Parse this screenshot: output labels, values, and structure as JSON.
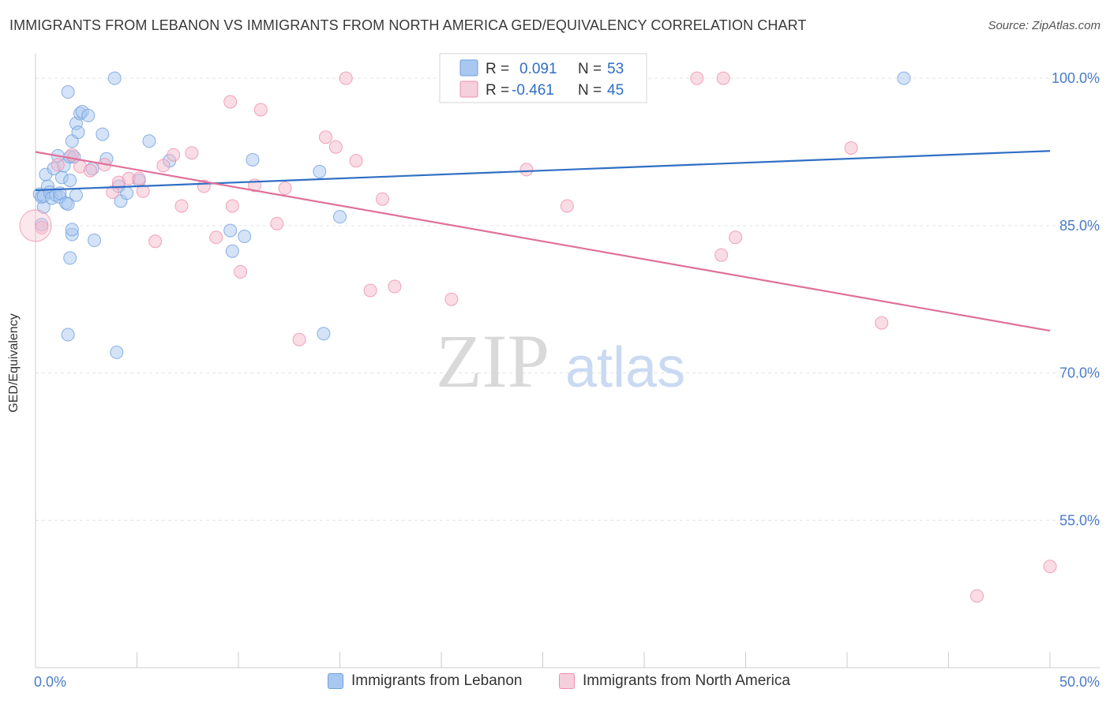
{
  "header": {
    "title": "IMMIGRANTS FROM LEBANON VS IMMIGRANTS FROM NORTH AMERICA GED/EQUIVALENCY CORRELATION CHART",
    "source": "Source: ZipAtlas.com"
  },
  "watermark": {
    "zip": "ZIP",
    "atlas": "atlas"
  },
  "colors": {
    "blue_fill": "#a9c8f0",
    "blue_stroke": "#6f9fde",
    "blue_line": "#2f6fc4",
    "pink_fill": "#f6b9cc",
    "pink_stroke": "#ec8fae",
    "pink_line": "#e0709a",
    "tick_text": "#4a7cc9",
    "grid": "#e3e3e3"
  },
  "chart_data": {
    "type": "scatter",
    "xlabel": "",
    "ylabel": "GED/Equivalency",
    "xlim": [
      0,
      50
    ],
    "ylim": [
      40,
      102.5
    ],
    "x_tick_labels": [
      {
        "value": 0,
        "label": "0.0%"
      },
      {
        "value": 50,
        "label": "50.0%"
      }
    ],
    "y_tick_labels": [
      {
        "value": 100,
        "label": "100.0%"
      },
      {
        "value": 85,
        "label": "85.0%"
      },
      {
        "value": 70,
        "label": "70.0%"
      },
      {
        "value": 55,
        "label": "55.0%"
      }
    ],
    "grid": "horizontal dashed",
    "legend": {
      "placement": "top-center",
      "entries": [
        {
          "r_label": "R =",
          "r_value": "0.091",
          "n_label": "N =",
          "n_value": "53"
        },
        {
          "r_label": "R =",
          "r_value": "-0.461",
          "n_label": "N =",
          "n_value": "45"
        }
      ]
    },
    "series": [
      {
        "name": "Immigrants from Lebanon",
        "color": "blue",
        "trend": {
          "x": [
            0,
            50
          ],
          "y": [
            88.6,
            92.6
          ]
        },
        "points": [
          [
            0.2,
            88.2
          ],
          [
            0.3,
            87.9
          ],
          [
            0.3,
            85.1
          ],
          [
            0.4,
            86.9
          ],
          [
            0.4,
            88.0
          ],
          [
            0.5,
            90.2
          ],
          [
            0.6,
            89.0
          ],
          [
            0.7,
            88.4
          ],
          [
            0.8,
            87.8
          ],
          [
            0.9,
            90.8
          ],
          [
            1.0,
            88.1
          ],
          [
            1.1,
            92.1
          ],
          [
            1.2,
            87.9
          ],
          [
            1.2,
            88.3
          ],
          [
            1.3,
            89.9
          ],
          [
            1.4,
            91.1
          ],
          [
            1.5,
            87.3
          ],
          [
            1.6,
            87.2
          ],
          [
            1.7,
            89.6
          ],
          [
            1.7,
            92.0
          ],
          [
            1.8,
            93.6
          ],
          [
            1.6,
            73.9
          ],
          [
            1.6,
            98.6
          ],
          [
            1.8,
            84.1
          ],
          [
            1.7,
            81.7
          ],
          [
            1.8,
            84.6
          ],
          [
            1.9,
            92.0
          ],
          [
            2.0,
            95.4
          ],
          [
            2.0,
            88.1
          ],
          [
            2.1,
            94.5
          ],
          [
            2.2,
            96.4
          ],
          [
            2.3,
            96.6
          ],
          [
            2.6,
            96.2
          ],
          [
            2.8,
            90.8
          ],
          [
            2.9,
            83.5
          ],
          [
            3.3,
            94.3
          ],
          [
            3.5,
            91.8
          ],
          [
            3.9,
            100.0
          ],
          [
            4.1,
            89.0
          ],
          [
            4.2,
            87.5
          ],
          [
            4.0,
            72.1
          ],
          [
            4.5,
            88.3
          ],
          [
            5.1,
            89.6
          ],
          [
            5.6,
            93.6
          ],
          [
            6.6,
            91.6
          ],
          [
            9.6,
            84.5
          ],
          [
            9.7,
            82.4
          ],
          [
            10.3,
            83.9
          ],
          [
            10.7,
            91.7
          ],
          [
            14.0,
            90.5
          ],
          [
            14.2,
            74.0
          ],
          [
            15.0,
            85.9
          ],
          [
            42.8,
            100.0
          ]
        ]
      },
      {
        "name": "Immigrants from North America",
        "color": "pink",
        "trend": {
          "x": [
            0,
            50
          ],
          "y": [
            92.5,
            74.3
          ]
        },
        "points": [
          [
            0.3,
            84.8
          ],
          [
            1.1,
            91.2
          ],
          [
            1.8,
            92.2
          ],
          [
            2.2,
            91.0
          ],
          [
            2.7,
            90.6
          ],
          [
            3.4,
            91.2
          ],
          [
            3.8,
            88.4
          ],
          [
            4.1,
            89.4
          ],
          [
            4.6,
            89.8
          ],
          [
            5.1,
            89.8
          ],
          [
            5.3,
            88.5
          ],
          [
            5.9,
            83.4
          ],
          [
            6.3,
            91.1
          ],
          [
            6.8,
            92.2
          ],
          [
            7.2,
            87.0
          ],
          [
            7.7,
            92.4
          ],
          [
            8.3,
            89.0
          ],
          [
            8.9,
            83.8
          ],
          [
            9.6,
            97.6
          ],
          [
            9.7,
            87.0
          ],
          [
            10.1,
            80.3
          ],
          [
            10.8,
            89.1
          ],
          [
            11.1,
            96.8
          ],
          [
            11.9,
            85.2
          ],
          [
            12.3,
            88.8
          ],
          [
            13.0,
            73.4
          ],
          [
            14.3,
            94.0
          ],
          [
            14.8,
            93.0
          ],
          [
            15.3,
            100.0
          ],
          [
            15.8,
            91.6
          ],
          [
            16.5,
            78.4
          ],
          [
            17.1,
            87.7
          ],
          [
            17.7,
            78.8
          ],
          [
            20.5,
            77.5
          ],
          [
            24.2,
            90.7
          ],
          [
            26.2,
            87.0
          ],
          [
            32.6,
            100.0
          ],
          [
            33.9,
            100.0
          ],
          [
            33.8,
            82.0
          ],
          [
            34.5,
            83.8
          ],
          [
            40.2,
            92.9
          ],
          [
            41.7,
            75.1
          ],
          [
            46.4,
            47.3
          ],
          [
            50.0,
            50.3
          ],
          [
            0.0,
            85.0
          ]
        ]
      }
    ]
  },
  "bottom_legend": {
    "items": [
      {
        "label": "Immigrants from Lebanon"
      },
      {
        "label": "Immigrants from North America"
      }
    ]
  }
}
